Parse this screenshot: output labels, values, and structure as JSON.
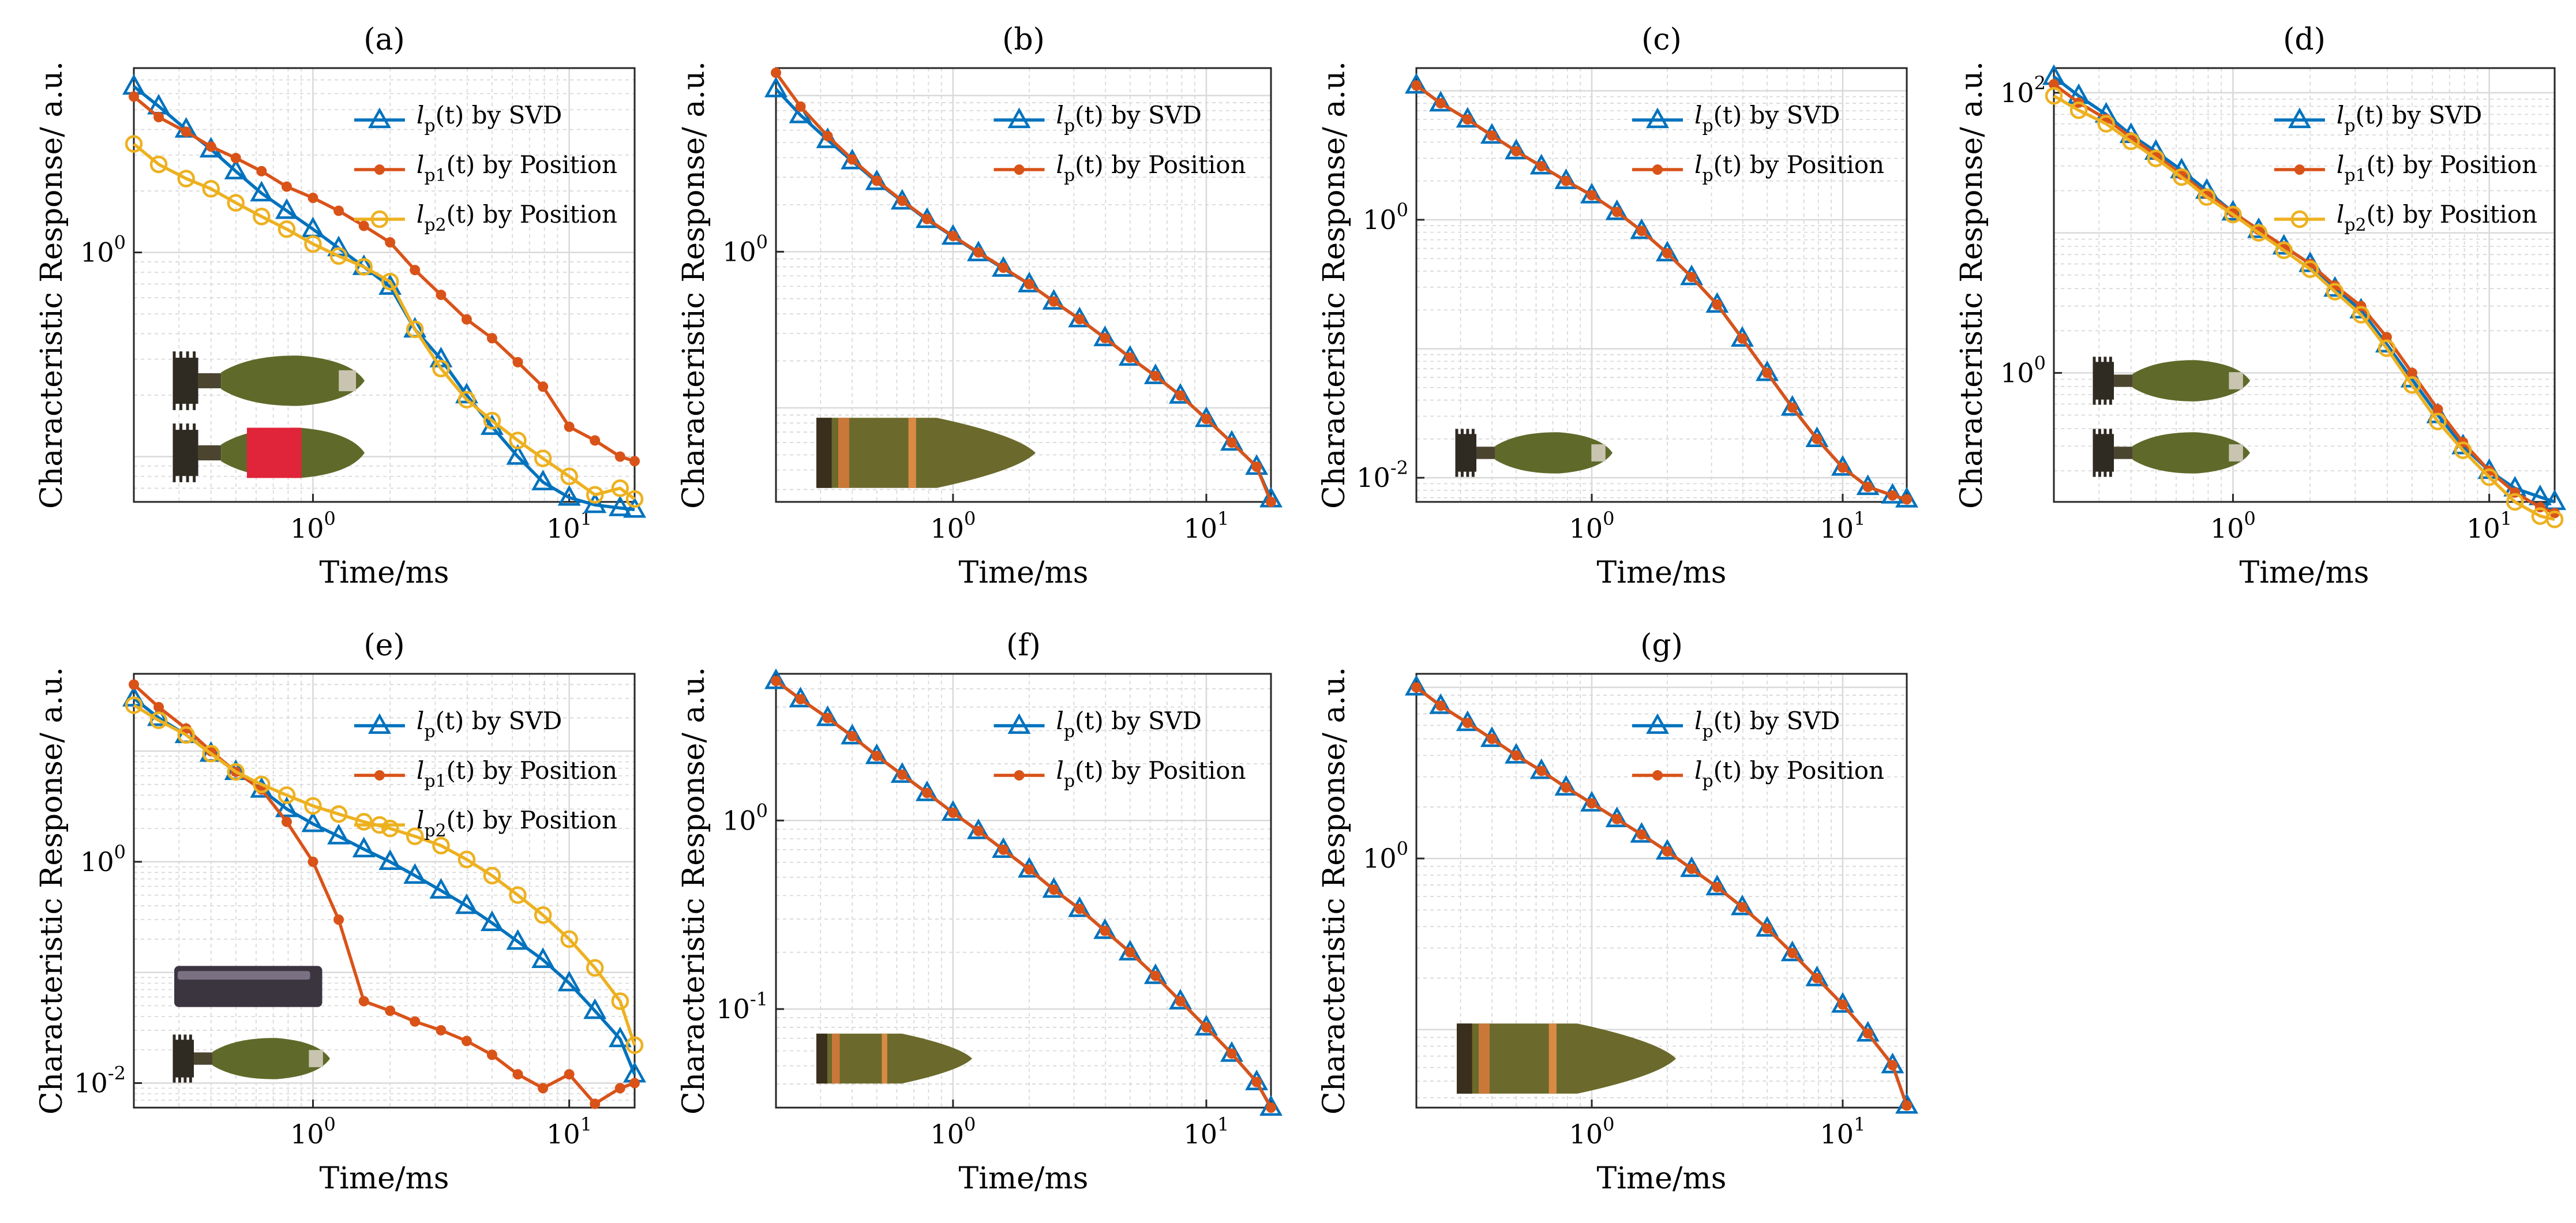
{
  "figure": {
    "background": "#ffffff"
  },
  "colors": {
    "svd": "#0072BD",
    "pos1": "#D95319",
    "pos2": "#EDB120",
    "grid": "#d9d9d9",
    "axis": "#262626"
  },
  "chart_data": [
    {
      "id": "a",
      "type": "line",
      "title": "(a)",
      "xlabel": "Time/ms",
      "ylabel": "Characteristic Response/ a.u.",
      "xscale": "log",
      "yscale": "log",
      "xlim": [
        0.2,
        18
      ],
      "ylim": [
        0.06,
        8
      ],
      "yticks": [
        {
          "v": 1,
          "m": "10",
          "e": "0"
        }
      ],
      "legend_position": "top-right",
      "inset": {
        "icons": [
          "mortar-shell-icon",
          "mortar-shell-red-band-icon"
        ],
        "position": "lower-left"
      },
      "x": [
        0.2,
        0.25,
        0.32,
        0.4,
        0.5,
        0.63,
        0.79,
        1.0,
        1.26,
        1.58,
        2.0,
        2.5,
        3.16,
        3.98,
        5.0,
        6.3,
        7.9,
        10,
        12.6,
        15.8,
        18
      ],
      "series": [
        {
          "name": "SVD",
          "color": "svd",
          "marker": "triangle",
          "legend_main": "l",
          "legend_sub": "p",
          "legend_rest": "(t) by SVD",
          "values": [
            6.5,
            5.2,
            4.0,
            3.2,
            2.5,
            1.95,
            1.6,
            1.3,
            1.05,
            0.85,
            0.68,
            0.42,
            0.3,
            0.2,
            0.14,
            0.1,
            0.075,
            0.063,
            0.058,
            0.056,
            0.055
          ]
        },
        {
          "name": "Position 1",
          "color": "pos1",
          "marker": "square",
          "legend_main": "l",
          "legend_sub": "p1",
          "legend_rest": "(t) by Position",
          "values": [
            5.8,
            4.6,
            3.9,
            3.3,
            2.9,
            2.5,
            2.1,
            1.85,
            1.6,
            1.35,
            1.12,
            0.82,
            0.62,
            0.47,
            0.38,
            0.29,
            0.22,
            0.14,
            0.12,
            0.1,
            0.095
          ]
        },
        {
          "name": "Position 2",
          "color": "pos2",
          "marker": "circle",
          "legend_main": "l",
          "legend_sub": "p2",
          "legend_rest": "(t) by Position",
          "values": [
            3.4,
            2.7,
            2.3,
            2.05,
            1.75,
            1.5,
            1.3,
            1.1,
            0.96,
            0.85,
            0.72,
            0.42,
            0.27,
            0.19,
            0.15,
            0.12,
            0.098,
            0.08,
            0.065,
            0.07,
            0.062
          ]
        }
      ]
    },
    {
      "id": "b",
      "type": "line",
      "title": "(b)",
      "xlabel": "Time/ms",
      "ylabel": "Characteristic Response/ a.u.",
      "xscale": "log",
      "yscale": "log",
      "xlim": [
        0.2,
        18
      ],
      "ylim": [
        0.025,
        15
      ],
      "yticks": [
        {
          "v": 1,
          "m": "10",
          "e": "0"
        }
      ],
      "legend_position": "top-right",
      "inset": {
        "icons": [
          "projectile-icon"
        ],
        "position": "lower-left"
      },
      "x": [
        0.2,
        0.25,
        0.32,
        0.4,
        0.5,
        0.63,
        0.79,
        1.0,
        1.26,
        1.58,
        2.0,
        2.5,
        3.16,
        3.98,
        5.0,
        6.3,
        7.9,
        10,
        12.6,
        15.8,
        18
      ],
      "series": [
        {
          "name": "SVD",
          "color": "svd",
          "marker": "triangle",
          "legend_main": "l",
          "legend_sub": "p",
          "legend_rest": "(t) by SVD",
          "values": [
            11,
            7.5,
            5.2,
            3.8,
            2.8,
            2.1,
            1.6,
            1.25,
            0.98,
            0.78,
            0.62,
            0.48,
            0.37,
            0.28,
            0.21,
            0.16,
            0.12,
            0.085,
            0.06,
            0.042,
            0.026
          ]
        },
        {
          "name": "Position",
          "color": "pos1",
          "marker": "square",
          "legend_main": "l",
          "legend_sub": "p",
          "legend_rest": "(t) by Position",
          "values": [
            14,
            8.5,
            5.5,
            3.9,
            2.85,
            2.12,
            1.62,
            1.26,
            0.99,
            0.79,
            0.62,
            0.48,
            0.37,
            0.28,
            0.21,
            0.16,
            0.12,
            0.085,
            0.06,
            0.042,
            0.025
          ]
        }
      ]
    },
    {
      "id": "c",
      "type": "line",
      "title": "(c)",
      "xlabel": "Time/ms",
      "ylabel": "Characteristic Response/ a.u.",
      "xscale": "log",
      "yscale": "log",
      "xlim": [
        0.2,
        18
      ],
      "ylim": [
        0.0065,
        15
      ],
      "yticks": [
        {
          "v": 1,
          "m": "10",
          "e": "0"
        },
        {
          "v": 0.01,
          "m": "10",
          "e": "-2"
        }
      ],
      "legend_position": "top-right",
      "inset": {
        "icons": [
          "mortar-shell-icon"
        ],
        "position": "lower-left"
      },
      "x": [
        0.2,
        0.25,
        0.32,
        0.4,
        0.5,
        0.63,
        0.79,
        1.0,
        1.26,
        1.58,
        2.0,
        2.5,
        3.16,
        3.98,
        5.0,
        6.3,
        7.9,
        10,
        12.6,
        15.8,
        18
      ],
      "series": [
        {
          "name": "SVD",
          "color": "svd",
          "marker": "triangle",
          "legend_main": "l",
          "legend_sub": "p",
          "legend_rest": "(t) by SVD",
          "values": [
            11,
            8,
            6,
            4.5,
            3.4,
            2.6,
            2.0,
            1.55,
            1.15,
            0.82,
            0.55,
            0.36,
            0.22,
            0.12,
            0.065,
            0.035,
            0.02,
            0.012,
            0.0085,
            0.0073,
            0.0068
          ]
        },
        {
          "name": "Position",
          "color": "pos1",
          "marker": "square",
          "legend_main": "l",
          "legend_sub": "p",
          "legend_rest": "(t) by Position",
          "values": [
            11,
            8,
            6,
            4.5,
            3.4,
            2.6,
            2.0,
            1.55,
            1.15,
            0.82,
            0.55,
            0.36,
            0.22,
            0.12,
            0.065,
            0.035,
            0.02,
            0.012,
            0.0085,
            0.0073,
            0.0068
          ]
        }
      ]
    },
    {
      "id": "d",
      "type": "line",
      "title": "(d)",
      "xlabel": "Time/ms",
      "ylabel": "Characteristic Response/ a.u.",
      "xscale": "log",
      "yscale": "log",
      "xlim": [
        0.2,
        18
      ],
      "ylim": [
        0.12,
        150
      ],
      "yticks": [
        {
          "v": 100,
          "m": "10",
          "e": "2"
        },
        {
          "v": 1,
          "m": "10",
          "e": "0"
        }
      ],
      "legend_position": "top-right",
      "inset": {
        "icons": [
          "mortar-shell-icon",
          "mortar-shell-icon"
        ],
        "position": "lower-left"
      },
      "x": [
        0.2,
        0.25,
        0.32,
        0.4,
        0.5,
        0.63,
        0.79,
        1.0,
        1.26,
        1.58,
        2.0,
        2.5,
        3.16,
        3.98,
        5.0,
        6.3,
        7.9,
        10,
        12.6,
        15.8,
        18
      ],
      "series": [
        {
          "name": "SVD",
          "color": "svd",
          "marker": "triangle",
          "legend_main": "l",
          "legend_sub": "p",
          "legend_rest": "(t) by SVD",
          "values": [
            130,
            95,
            70,
            50,
            38,
            28,
            20,
            14,
            10.5,
            8,
            6,
            4,
            2.8,
            1.6,
            0.9,
            0.5,
            0.3,
            0.2,
            0.15,
            0.13,
            0.12
          ]
        },
        {
          "name": "Position 1",
          "color": "pos1",
          "marker": "square",
          "legend_main": "l",
          "legend_sub": "p1",
          "legend_rest": "(t) by Position",
          "values": [
            115,
            85,
            65,
            48,
            36,
            26,
            19,
            14,
            10.5,
            8,
            6,
            4.2,
            3.0,
            1.8,
            1.0,
            0.55,
            0.32,
            0.2,
            0.14,
            0.11,
            0.1
          ]
        },
        {
          "name": "Position 2",
          "color": "pos2",
          "marker": "circle",
          "legend_main": "l",
          "legend_sub": "p2",
          "legend_rest": "(t) by Position",
          "values": [
            95,
            75,
            60,
            45,
            34,
            25,
            18,
            13.5,
            10,
            7.5,
            5.5,
            3.8,
            2.6,
            1.5,
            0.82,
            0.45,
            0.28,
            0.18,
            0.12,
            0.095,
            0.09
          ]
        }
      ]
    },
    {
      "id": "e",
      "type": "line",
      "title": "(e)",
      "xlabel": "Time/ms",
      "ylabel": "Characteristic Response/ a.u.",
      "xscale": "log",
      "yscale": "log",
      "xlim": [
        0.2,
        18
      ],
      "ylim": [
        0.006,
        50
      ],
      "yticks": [
        {
          "v": 1,
          "m": "10",
          "e": "0"
        },
        {
          "v": 0.01,
          "m": "10",
          "e": "-2"
        }
      ],
      "legend_position": "top-right",
      "inset": {
        "icons": [
          "cylinder-object-icon",
          "mortar-shell-icon"
        ],
        "position": "lower-left"
      },
      "x": [
        0.2,
        0.25,
        0.32,
        0.4,
        0.5,
        0.63,
        0.79,
        1.0,
        1.26,
        1.58,
        2.0,
        2.5,
        3.16,
        3.98,
        5.0,
        6.3,
        7.9,
        10,
        12.6,
        15.8,
        18
      ],
      "series": [
        {
          "name": "SVD",
          "color": "svd",
          "marker": "triangle",
          "legend_main": "l",
          "legend_sub": "p",
          "legend_rest": "(t) by SVD",
          "values": [
            30,
            20,
            14,
            9.5,
            6.5,
            4.5,
            3.0,
            2.2,
            1.7,
            1.3,
            1.0,
            0.75,
            0.55,
            0.4,
            0.28,
            0.19,
            0.13,
            0.08,
            0.045,
            0.025,
            0.012
          ]
        },
        {
          "name": "Position 1",
          "color": "pos1",
          "marker": "square",
          "legend_main": "l",
          "legend_sub": "p1",
          "legend_rest": "(t) by Position",
          "values": [
            40,
            25,
            16,
            10,
            6.5,
            4.5,
            2.3,
            1.0,
            0.3,
            0.055,
            0.045,
            0.036,
            0.03,
            0.024,
            0.018,
            0.012,
            0.009,
            0.012,
            0.0065,
            0.009,
            0.01
          ]
        },
        {
          "name": "Position 2",
          "color": "pos2",
          "marker": "circle",
          "legend_main": "l",
          "legend_sub": "p2",
          "legend_rest": "(t) by Position",
          "values": [
            26,
            19,
            14,
            9.5,
            6.5,
            5.0,
            4.0,
            3.2,
            2.7,
            2.3,
            2.0,
            1.7,
            1.4,
            1.05,
            0.75,
            0.5,
            0.33,
            0.2,
            0.11,
            0.055,
            0.022
          ]
        }
      ]
    },
    {
      "id": "f",
      "type": "line",
      "title": "(f)",
      "xlabel": "Time/ms",
      "ylabel": "Characteristic Response/ a.u.",
      "xscale": "log",
      "yscale": "log",
      "xlim": [
        0.2,
        18
      ],
      "ylim": [
        0.03,
        6
      ],
      "yticks": [
        {
          "v": 1,
          "m": "10",
          "e": "0"
        },
        {
          "v": 0.1,
          "m": "10",
          "e": "-1"
        }
      ],
      "legend_position": "top-right",
      "inset": {
        "icons": [
          "projectile-icon"
        ],
        "position": "lower-left"
      },
      "x": [
        0.2,
        0.25,
        0.32,
        0.4,
        0.5,
        0.63,
        0.79,
        1.0,
        1.26,
        1.58,
        2.0,
        2.5,
        3.16,
        3.98,
        5.0,
        6.3,
        7.9,
        10,
        12.6,
        15.8,
        18
      ],
      "series": [
        {
          "name": "SVD",
          "color": "svd",
          "marker": "triangle",
          "legend_main": "l",
          "legend_sub": "p",
          "legend_rest": "(t) by SVD",
          "values": [
            5.5,
            4.4,
            3.5,
            2.8,
            2.2,
            1.75,
            1.4,
            1.1,
            0.88,
            0.7,
            0.55,
            0.43,
            0.34,
            0.26,
            0.2,
            0.15,
            0.11,
            0.08,
            0.058,
            0.041,
            0.03
          ]
        },
        {
          "name": "Position",
          "color": "pos1",
          "marker": "square",
          "legend_main": "l",
          "legend_sub": "p",
          "legend_rest": "(t) by Position",
          "values": [
            5.5,
            4.4,
            3.5,
            2.8,
            2.2,
            1.75,
            1.4,
            1.1,
            0.88,
            0.7,
            0.55,
            0.43,
            0.34,
            0.26,
            0.2,
            0.15,
            0.11,
            0.08,
            0.058,
            0.041,
            0.03
          ]
        }
      ]
    },
    {
      "id": "g",
      "type": "line",
      "title": "(g)",
      "xlabel": "Time/ms",
      "ylabel": "Characteristic Response/ a.u.",
      "xscale": "log",
      "yscale": "log",
      "xlim": [
        0.2,
        18
      ],
      "ylim": [
        0.035,
        12
      ],
      "yticks": [
        {
          "v": 1,
          "m": "10",
          "e": "0"
        }
      ],
      "legend_position": "top-right",
      "inset": {
        "icons": [
          "projectile-icon"
        ],
        "position": "lower-left"
      },
      "x": [
        0.2,
        0.25,
        0.32,
        0.4,
        0.5,
        0.63,
        0.79,
        1.0,
        1.26,
        1.58,
        2.0,
        2.5,
        3.16,
        3.98,
        5.0,
        6.3,
        7.9,
        10,
        12.6,
        15.8,
        18
      ],
      "series": [
        {
          "name": "SVD",
          "color": "svd",
          "marker": "triangle",
          "legend_main": "l",
          "legend_sub": "p",
          "legend_rest": "(t) by SVD",
          "values": [
            10,
            7.8,
            6.2,
            5.0,
            4.0,
            3.25,
            2.6,
            2.1,
            1.7,
            1.38,
            1.1,
            0.87,
            0.68,
            0.52,
            0.39,
            0.28,
            0.2,
            0.14,
            0.095,
            0.062,
            0.036
          ]
        },
        {
          "name": "Position",
          "color": "pos1",
          "marker": "square",
          "legend_main": "l",
          "legend_sub": "p",
          "legend_rest": "(t) by Position",
          "values": [
            10,
            7.8,
            6.2,
            5.0,
            4.0,
            3.25,
            2.6,
            2.1,
            1.7,
            1.38,
            1.1,
            0.87,
            0.68,
            0.52,
            0.39,
            0.28,
            0.2,
            0.14,
            0.095,
            0.062,
            0.036
          ]
        }
      ]
    }
  ],
  "xticks": [
    {
      "v": 1,
      "m": "10",
      "e": "0"
    },
    {
      "v": 10,
      "m": "10",
      "e": "1"
    }
  ]
}
